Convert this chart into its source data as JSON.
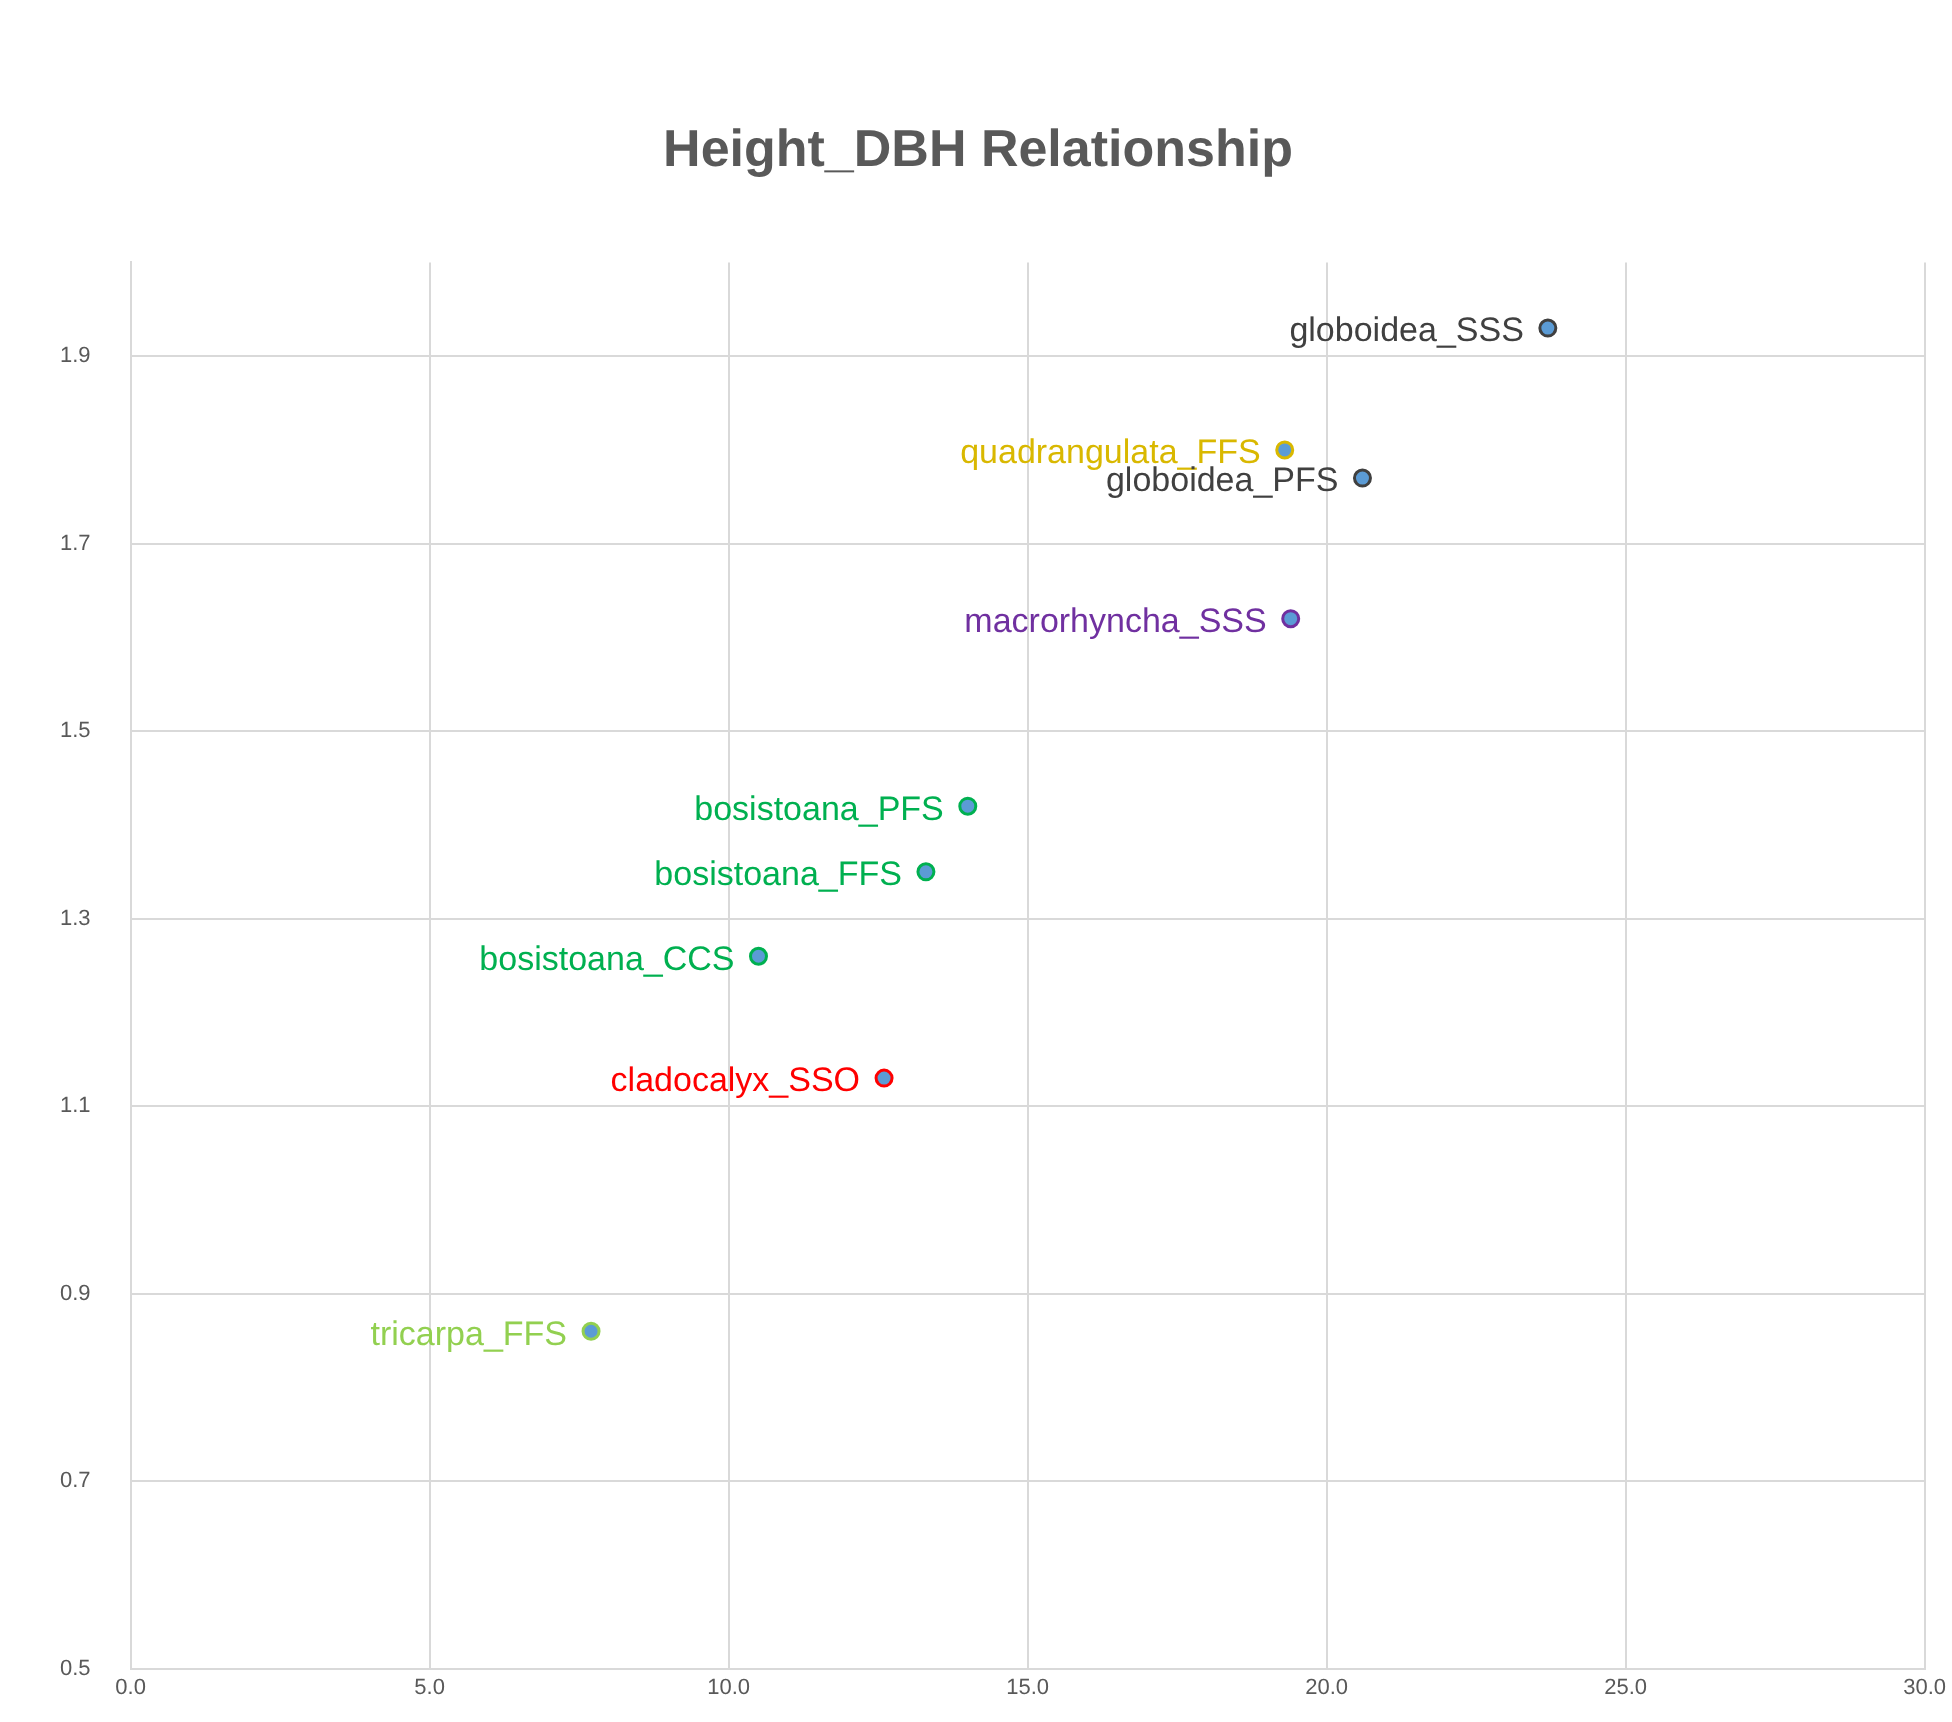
{
  "chart_data": {
    "type": "scatter",
    "title": "Height_DBH Relationship",
    "series": [
      {
        "name": "globoidea_SSS",
        "color": "#404040",
        "x": [
          23.7
        ],
        "values": [
          1.93
        ]
      },
      {
        "name": "quadrangulata_FFS",
        "color": "#d9b800",
        "x": [
          19.3
        ],
        "values": [
          1.8
        ]
      },
      {
        "name": "globoidea_PFS",
        "color": "#404040",
        "x": [
          20.6
        ],
        "values": [
          1.77
        ]
      },
      {
        "name": "macrorhyncha_SSS",
        "color": "#7030a0",
        "x": [
          19.4
        ],
        "values": [
          1.62
        ]
      },
      {
        "name": "bosistoana_PFS",
        "color": "#00b050",
        "x": [
          14.0
        ],
        "values": [
          1.42
        ]
      },
      {
        "name": "bosistoana_FFS",
        "color": "#00b050",
        "x": [
          13.3
        ],
        "values": [
          1.35
        ]
      },
      {
        "name": "bosistoana_CCS",
        "color": "#00b050",
        "x": [
          10.5
        ],
        "values": [
          1.26
        ]
      },
      {
        "name": "cladocalyx_SSO",
        "color": "#ff0000",
        "x": [
          12.6
        ],
        "values": [
          1.13
        ]
      },
      {
        "name": "tricarpa_FFS",
        "color": "#92d050",
        "x": [
          7.7
        ],
        "values": [
          0.86
        ]
      }
    ],
    "xlim": [
      0,
      30
    ],
    "xticks": [
      {
        "value": 0,
        "label": "0.0"
      },
      {
        "value": 5,
        "label": "5.0"
      },
      {
        "value": 10,
        "label": "10.0"
      },
      {
        "value": 15,
        "label": "15.0"
      },
      {
        "value": 20,
        "label": "20.0"
      },
      {
        "value": 25,
        "label": "25.0"
      },
      {
        "value": 30,
        "label": "30.0"
      }
    ],
    "ylim": [
      0.5,
      2.0
    ],
    "yticks": [
      0.5,
      0.7,
      0.9,
      1.1,
      1.3,
      1.5,
      1.7,
      1.9
    ],
    "grid": true,
    "legend": false,
    "marker": "circle"
  }
}
